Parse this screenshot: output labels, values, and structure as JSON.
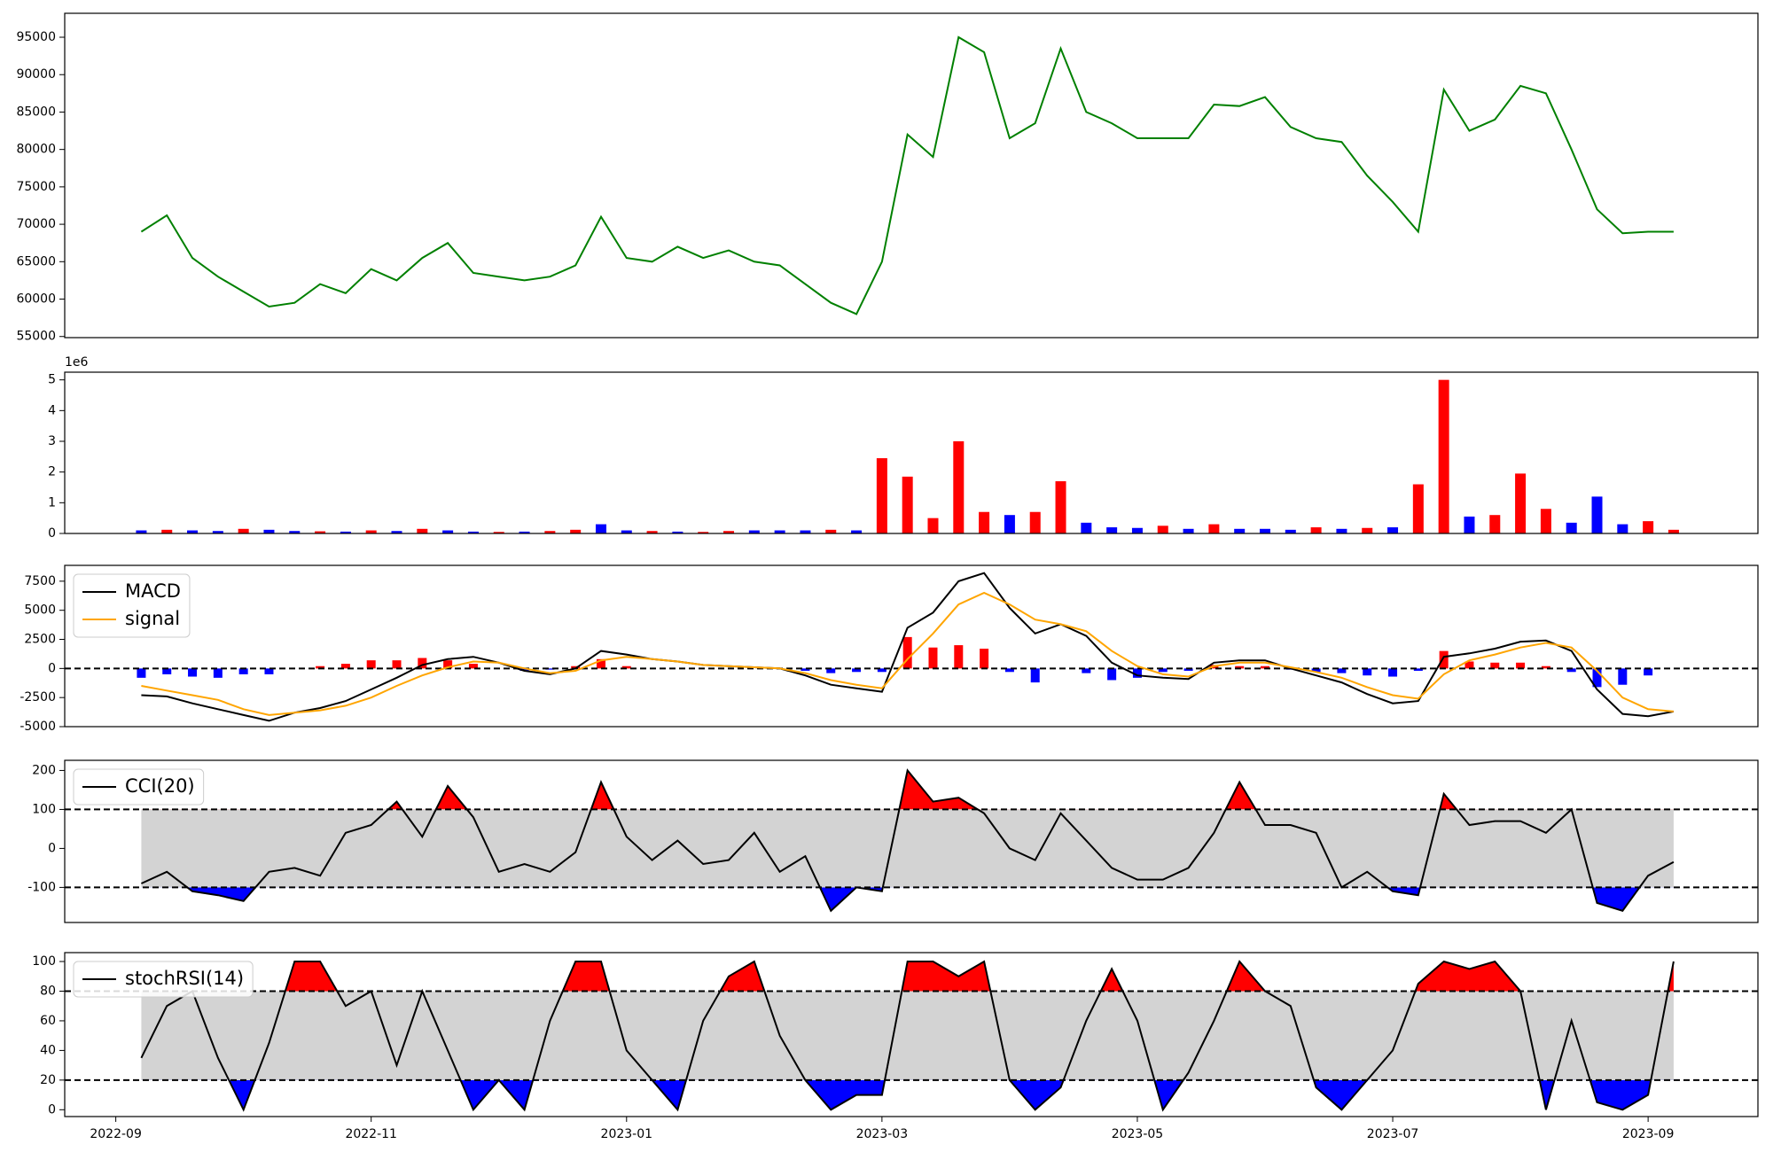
{
  "chart_data": [
    {
      "type": "line",
      "x": [
        0.2,
        0.4,
        0.6,
        0.8,
        1,
        1.2,
        1.4,
        1.6,
        1.8,
        2,
        2.2,
        2.4,
        2.6,
        2.8,
        3,
        3.2,
        3.4,
        3.6,
        3.8,
        4,
        4.2,
        4.4,
        4.6,
        4.8,
        5,
        5.2,
        5.4,
        5.6,
        5.8,
        6,
        6.2,
        6.4,
        6.6,
        6.8,
        7,
        7.2,
        7.4,
        7.6,
        7.8,
        8,
        8.2,
        8.4,
        8.6,
        8.8,
        9,
        9.2,
        9.4,
        9.6,
        9.8,
        10,
        10.2,
        10.4,
        10.6,
        10.8,
        11,
        11.2,
        11.4,
        11.6,
        11.8,
        12,
        12.2
      ],
      "xlim": [
        -0.4,
        12.86
      ],
      "ylim": [
        54850,
        98200
      ],
      "yticks": [
        55000,
        60000,
        65000,
        70000,
        75000,
        80000,
        85000,
        90000,
        95000
      ],
      "series": [
        {
          "color": "green",
          "values": [
            69000,
            71200,
            65500,
            63000,
            61000,
            59000,
            59500,
            62000,
            60800,
            64000,
            62500,
            65500,
            67500,
            63500,
            63000,
            62500,
            63000,
            64500,
            71000,
            65500,
            65000,
            67000,
            65500,
            66500,
            65000,
            64500,
            62000,
            59500,
            58000,
            65000,
            82000,
            79000,
            95000,
            93000,
            81500,
            83500,
            93500,
            85000,
            83500,
            81500,
            81500,
            81500,
            86000,
            85800,
            87000,
            83000,
            81500,
            81000,
            76500,
            73000,
            69000,
            88000,
            82500,
            84000,
            88500,
            87500,
            80000,
            72000,
            68800,
            69000,
            69000
          ]
        }
      ]
    },
    {
      "type": "bar",
      "x": [
        0.2,
        0.4,
        0.6,
        0.8,
        1,
        1.2,
        1.4,
        1.6,
        1.8,
        2,
        2.2,
        2.4,
        2.6,
        2.8,
        3,
        3.2,
        3.4,
        3.6,
        3.8,
        4,
        4.2,
        4.4,
        4.6,
        4.8,
        5,
        5.2,
        5.4,
        5.6,
        5.8,
        6,
        6.2,
        6.4,
        6.6,
        6.8,
        7,
        7.2,
        7.4,
        7.6,
        7.8,
        8,
        8.2,
        8.4,
        8.6,
        8.8,
        9,
        9.2,
        9.4,
        9.6,
        9.8,
        10,
        10.2,
        10.4,
        10.6,
        10.8,
        11,
        11.2,
        11.4,
        11.6,
        11.8,
        12,
        12.2
      ],
      "xlim": [
        -0.4,
        12.86
      ],
      "ylim": [
        0,
        5.25
      ],
      "yticks": [
        0,
        1,
        2,
        3,
        4,
        5
      ],
      "offset_label": "1e6",
      "series": [
        {
          "values": [
            0.1,
            0.12,
            0.1,
            0.08,
            0.15,
            0.12,
            0.08,
            0.07,
            0.06,
            0.1,
            0.08,
            0.15,
            0.1,
            0.06,
            0.05,
            0.06,
            0.08,
            0.12,
            0.3,
            0.1,
            0.08,
            0.06,
            0.05,
            0.08,
            0.1,
            0.1,
            0.1,
            0.12,
            0.1,
            2.45,
            1.85,
            0.5,
            3.0,
            0.7,
            0.6,
            0.7,
            1.7,
            0.35,
            0.2,
            0.18,
            0.25,
            0.15,
            0.3,
            0.15,
            0.15,
            0.12,
            0.2,
            0.15,
            0.18,
            0.2,
            1.6,
            5.0,
            0.55,
            0.6,
            1.95,
            0.8,
            0.35,
            1.2,
            0.3,
            0.4,
            0.12
          ],
          "colors": [
            "blue",
            "red",
            "blue",
            "blue",
            "red",
            "blue",
            "blue",
            "red",
            "blue",
            "red",
            "blue",
            "red",
            "blue",
            "blue",
            "red",
            "blue",
            "red",
            "red",
            "blue",
            "blue",
            "red",
            "blue",
            "red",
            "red",
            "blue",
            "blue",
            "blue",
            "red",
            "blue",
            "red",
            "red",
            "red",
            "red",
            "red",
            "blue",
            "red",
            "red",
            "blue",
            "blue",
            "blue",
            "red",
            "blue",
            "red",
            "blue",
            "blue",
            "blue",
            "red",
            "blue",
            "red",
            "blue",
            "red",
            "red",
            "blue",
            "red",
            "red",
            "red",
            "blue",
            "blue",
            "blue",
            "red",
            "red"
          ]
        }
      ]
    },
    {
      "type": "macd",
      "x": [
        0.2,
        0.4,
        0.6,
        0.8,
        1,
        1.2,
        1.4,
        1.6,
        1.8,
        2,
        2.2,
        2.4,
        2.6,
        2.8,
        3,
        3.2,
        3.4,
        3.6,
        3.8,
        4,
        4.2,
        4.4,
        4.6,
        4.8,
        5,
        5.2,
        5.4,
        5.6,
        5.8,
        6,
        6.2,
        6.4,
        6.6,
        6.8,
        7,
        7.2,
        7.4,
        7.6,
        7.8,
        8,
        8.2,
        8.4,
        8.6,
        8.8,
        9,
        9.2,
        9.4,
        9.6,
        9.8,
        10,
        10.2,
        10.4,
        10.6,
        10.8,
        11,
        11.2,
        11.4,
        11.6,
        11.8,
        12,
        12.2
      ],
      "xlim": [
        -0.4,
        12.86
      ],
      "ylim": [
        -5000,
        8860
      ],
      "yticks": [
        -5000,
        -2500,
        0,
        2500,
        5000,
        7500
      ],
      "hlines": [
        0
      ],
      "legend": "upper left",
      "histogram": {
        "pos_color": "red",
        "neg_color": "blue",
        "values": [
          -800,
          -500,
          -700,
          -800,
          -500,
          -500,
          0,
          200,
          400,
          700,
          700,
          900,
          700,
          400,
          0,
          -200,
          -100,
          200,
          800,
          200,
          0,
          0,
          0,
          0,
          0,
          0,
          -200,
          -400,
          -300,
          -300,
          2700,
          1800,
          2000,
          1700,
          -300,
          -1200,
          0,
          -400,
          -1000,
          -800,
          -300,
          -200,
          300,
          200,
          200,
          -100,
          -300,
          -400,
          -600,
          -700,
          -200,
          1500,
          600,
          500,
          500,
          200,
          -300,
          -1600,
          -1400,
          -600,
          0
        ]
      },
      "series": [
        {
          "name": "MACD",
          "color": "black",
          "values": [
            -2300,
            -2400,
            -3000,
            -3500,
            -4000,
            -4500,
            -3800,
            -3400,
            -2800,
            -1800,
            -800,
            300,
            800,
            1000,
            500,
            -200,
            -500,
            0,
            1500,
            1200,
            800,
            600,
            300,
            200,
            100,
            0,
            -600,
            -1400,
            -1700,
            -2000,
            3500,
            4800,
            7500,
            8200,
            5200,
            3000,
            3800,
            2800,
            500,
            -600,
            -800,
            -900,
            500,
            700,
            700,
            0,
            -600,
            -1200,
            -2200,
            -3000,
            -2800,
            1000,
            1300,
            1700,
            2300,
            2400,
            1500,
            -1800,
            -3900,
            -4100,
            -3700
          ]
        },
        {
          "name": "signal",
          "color": "orange",
          "values": [
            -1500,
            -1900,
            -2300,
            -2700,
            -3500,
            -4000,
            -3800,
            -3600,
            -3200,
            -2500,
            -1500,
            -600,
            100,
            600,
            500,
            0,
            -400,
            -200,
            700,
            1000,
            800,
            600,
            300,
            200,
            100,
            0,
            -400,
            -1000,
            -1400,
            -1700,
            800,
            3000,
            5500,
            6500,
            5500,
            4200,
            3800,
            3200,
            1500,
            200,
            -500,
            -700,
            200,
            500,
            500,
            100,
            -300,
            -800,
            -1600,
            -2300,
            -2600,
            -500,
            700,
            1200,
            1800,
            2200,
            1800,
            -200,
            -2500,
            -3500,
            -3700
          ]
        }
      ]
    },
    {
      "type": "band",
      "x": [
        0.2,
        0.4,
        0.6,
        0.8,
        1,
        1.2,
        1.4,
        1.6,
        1.8,
        2,
        2.2,
        2.4,
        2.6,
        2.8,
        3,
        3.2,
        3.4,
        3.6,
        3.8,
        4,
        4.2,
        4.4,
        4.6,
        4.8,
        5,
        5.2,
        5.4,
        5.6,
        5.8,
        6,
        6.2,
        6.4,
        6.6,
        6.8,
        7,
        7.2,
        7.4,
        7.6,
        7.8,
        8,
        8.2,
        8.4,
        8.6,
        8.8,
        9,
        9.2,
        9.4,
        9.6,
        9.8,
        10,
        10.2,
        10.4,
        10.6,
        10.8,
        11,
        11.2,
        11.4,
        11.6,
        11.8,
        12,
        12.2
      ],
      "xlim": [
        -0.4,
        12.86
      ],
      "ylim": [
        -190,
        226
      ],
      "yticks": [
        -100,
        0,
        100,
        200
      ],
      "bands": [
        -100,
        100
      ],
      "band_color": "lightgray",
      "above_color": "red",
      "below_color": "blue",
      "legend": "upper left",
      "series": [
        {
          "name": "CCI(20)",
          "color": "black",
          "values": [
            -90,
            -60,
            -110,
            -120,
            -135,
            -60,
            -50,
            -70,
            40,
            60,
            120,
            30,
            160,
            80,
            -60,
            -40,
            -60,
            -10,
            170,
            30,
            -30,
            20,
            -40,
            -30,
            40,
            -60,
            -20,
            -160,
            -100,
            -110,
            200,
            120,
            130,
            90,
            0,
            -30,
            90,
            20,
            -50,
            -80,
            -80,
            -50,
            40,
            170,
            60,
            60,
            40,
            -100,
            -60,
            -110,
            -120,
            140,
            60,
            70,
            70,
            40,
            100,
            -140,
            -160,
            -70,
            -35
          ]
        }
      ]
    },
    {
      "type": "band",
      "x": [
        0.2,
        0.4,
        0.6,
        0.8,
        1,
        1.2,
        1.4,
        1.6,
        1.8,
        2,
        2.2,
        2.4,
        2.6,
        2.8,
        3,
        3.2,
        3.4,
        3.6,
        3.8,
        4,
        4.2,
        4.4,
        4.6,
        4.8,
        5,
        5.2,
        5.4,
        5.6,
        5.8,
        6,
        6.2,
        6.4,
        6.6,
        6.8,
        7,
        7.2,
        7.4,
        7.6,
        7.8,
        8,
        8.2,
        8.4,
        8.6,
        8.8,
        9,
        9.2,
        9.4,
        9.6,
        9.8,
        10,
        10.2,
        10.4,
        10.6,
        10.8,
        11,
        11.2,
        11.4,
        11.6,
        11.8,
        12,
        12.2
      ],
      "xlim": [
        -0.4,
        12.86
      ],
      "ylim": [
        -4.6,
        106
      ],
      "yticks": [
        0,
        20,
        40,
        60,
        80,
        100
      ],
      "xticks": [
        {
          "value": 0,
          "label": "2022-09"
        },
        {
          "value": 2,
          "label": "2022-11"
        },
        {
          "value": 4,
          "label": "2023-01"
        },
        {
          "value": 6,
          "label": "2023-03"
        },
        {
          "value": 8,
          "label": "2023-05"
        },
        {
          "value": 10,
          "label": "2023-07"
        },
        {
          "value": 12,
          "label": "2023-09"
        }
      ],
      "bands": [
        20,
        80
      ],
      "band_color": "lightgray",
      "above_color": "red",
      "below_color": "blue",
      "legend": "upper left",
      "series": [
        {
          "name": "stochRSI(14)",
          "color": "black",
          "values": [
            35,
            70,
            80,
            35,
            0,
            45,
            100,
            100,
            70,
            80,
            30,
            80,
            40,
            0,
            20,
            0,
            60,
            100,
            100,
            40,
            20,
            0,
            60,
            90,
            100,
            50,
            20,
            0,
            10,
            10,
            100,
            100,
            90,
            100,
            20,
            0,
            15,
            60,
            95,
            60,
            0,
            25,
            60,
            100,
            80,
            70,
            15,
            0,
            20,
            40,
            85,
            100,
            95,
            100,
            80,
            0,
            60,
            5,
            0,
            10,
            100
          ]
        }
      ]
    }
  ]
}
